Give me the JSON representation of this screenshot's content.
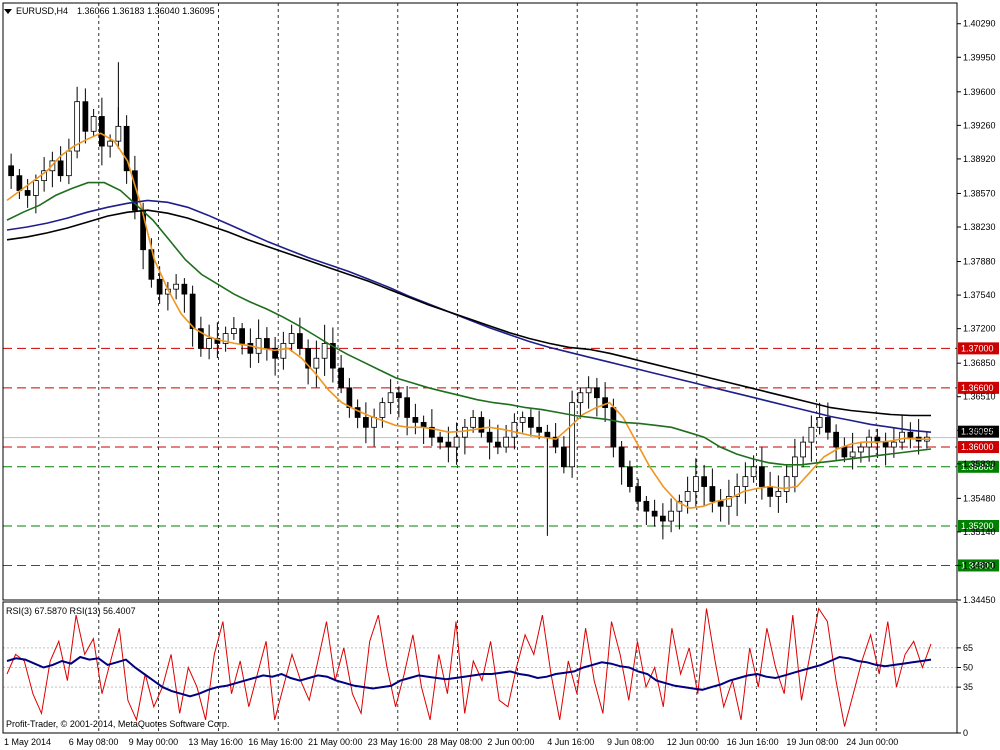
{
  "header": {
    "symbol": "EURUSD,H4",
    "ohlc": "1.36066 1.36183 1.36040 1.36095"
  },
  "footer": {
    "copyright": "Profit-Trader, © 2001-2014, MetaQuotes Software Corp."
  },
  "colors": {
    "candles": "#000000",
    "ema_fast": "#f0961e",
    "ema_mid": "#1e6e1e",
    "ema_slow_blue": "#1e1e8c",
    "ema_slowest": "#000000",
    "resistance": "#cc0000",
    "support": "#008000",
    "rsi3": "#dd0000",
    "rsi13": "#000080"
  },
  "chart_data": [
    {
      "type": "candlestick",
      "title": "EURUSD,H4",
      "ylim": [
        1.3445,
        1.405
      ],
      "y_ticks": [
        "1.40290",
        "1.39950",
        "1.39600",
        "1.39260",
        "1.38920",
        "1.38570",
        "1.38230",
        "1.37880",
        "1.37540",
        "1.37200",
        "1.36850",
        "1.36510",
        "1.36170",
        "1.35830",
        "1.35480",
        "1.35140",
        "1.34800",
        "1.34450"
      ],
      "x_ticks": [
        "1 May 2014",
        "6 May 08:00",
        "9 May 00:00",
        "13 May 16:00",
        "16 May 16:00",
        "21 May 00:00",
        "23 May 16:00",
        "28 May 08:00",
        "2 Jun 00:00",
        "4 Jun 16:00",
        "9 Jun 08:00",
        "12 Jun 00:00",
        "16 Jun 16:00",
        "19 Jun 08:00",
        "24 Jun 00:00"
      ],
      "close_path": [
        1.3875,
        1.386,
        1.3855,
        1.387,
        1.388,
        1.389,
        1.3875,
        1.39,
        1.395,
        1.392,
        1.3935,
        1.3905,
        1.391,
        1.3925,
        1.388,
        1.384,
        1.38,
        1.377,
        1.3755,
        1.376,
        1.3765,
        1.3755,
        1.372,
        1.37,
        1.371,
        1.3705,
        1.3715,
        1.372,
        1.3705,
        1.3695,
        1.371,
        1.37,
        1.369,
        1.3705,
        1.3715,
        1.37,
        1.368,
        1.369,
        1.3705,
        1.368,
        1.366,
        1.364,
        1.363,
        1.362,
        1.363,
        1.3645,
        1.3655,
        1.365,
        1.363,
        1.3625,
        1.362,
        1.361,
        1.3605,
        1.36,
        1.361,
        1.362,
        1.363,
        1.3615,
        1.3605,
        1.36,
        1.361,
        1.3625,
        1.363,
        1.362,
        1.3615,
        1.361,
        1.36,
        1.358,
        1.3645,
        1.3655,
        1.366,
        1.365,
        1.364,
        1.36,
        1.358,
        1.356,
        1.3545,
        1.3535,
        1.353,
        1.3525,
        1.3535,
        1.3545,
        1.3555,
        1.357,
        1.356,
        1.3545,
        1.354,
        1.355,
        1.356,
        1.357,
        1.358,
        1.356,
        1.355,
        1.3555,
        1.357,
        1.359,
        1.3605,
        1.362,
        1.363,
        1.3615,
        1.36,
        1.359,
        1.3595,
        1.36,
        1.361,
        1.3605,
        1.36,
        1.3605,
        1.3615,
        1.361,
        1.3606,
        1.361
      ],
      "horizontal_levels": [
        {
          "value": 1.37,
          "label": "1.37000",
          "kind": "resistance"
        },
        {
          "value": 1.366,
          "label": "1.36600",
          "kind": "resistance"
        },
        {
          "value": 1.36,
          "label": "1.36000",
          "kind": "resistance"
        },
        {
          "value": 1.358,
          "label": "1.35800",
          "kind": "support"
        },
        {
          "value": 1.352,
          "label": "1.35200",
          "kind": "support"
        },
        {
          "value": 1.348,
          "label": "1.34800",
          "kind": "support"
        }
      ],
      "current_price": {
        "value": 1.36095,
        "label": "1.36095"
      },
      "moving_averages": [
        {
          "color_key": "ema_fast",
          "values": [
            1.385,
            1.386,
            1.387,
            1.388,
            1.3895,
            1.3905,
            1.3912,
            1.3918,
            1.391,
            1.389,
            1.3845,
            1.379,
            1.376,
            1.3735,
            1.372,
            1.3712,
            1.3708,
            1.3705,
            1.3703,
            1.37,
            1.3698,
            1.37,
            1.369,
            1.3675,
            1.3658,
            1.3645,
            1.3638,
            1.3632,
            1.3627,
            1.3622,
            1.362,
            1.362,
            1.3618,
            1.3615,
            1.3616,
            1.3618,
            1.362,
            1.3618,
            1.3615,
            1.3612,
            1.361,
            1.3608,
            1.362,
            1.3633,
            1.364,
            1.3645,
            1.363,
            1.3605,
            1.358,
            1.356,
            1.3545,
            1.3538,
            1.354,
            1.3545,
            1.3548,
            1.3555,
            1.3558,
            1.356,
            1.3558,
            1.356,
            1.3575,
            1.359,
            1.3598,
            1.3603,
            1.3605,
            1.3605,
            1.3606,
            1.3609,
            1.3608,
            1.3608
          ]
        },
        {
          "color_key": "ema_mid",
          "values": [
            1.383,
            1.3838,
            1.3845,
            1.3855,
            1.3862,
            1.3868,
            1.3868,
            1.386,
            1.3845,
            1.383,
            1.381,
            1.379,
            1.3775,
            1.3765,
            1.3755,
            1.3747,
            1.374,
            1.3732,
            1.3723,
            1.3713,
            1.3703,
            1.3694,
            1.3686,
            1.3678,
            1.367,
            1.3665,
            1.366,
            1.3656,
            1.3652,
            1.3648,
            1.3645,
            1.3643,
            1.364,
            1.3638,
            1.3635,
            1.3632,
            1.363,
            1.3628,
            1.3625,
            1.3624,
            1.3622,
            1.362,
            1.3615,
            1.361,
            1.36,
            1.3593,
            1.3588,
            1.3584,
            1.3582,
            1.3582,
            1.3584,
            1.3586,
            1.3588,
            1.359,
            1.3592,
            1.3594,
            1.3596,
            1.3598
          ]
        },
        {
          "color_key": "ema_slow_blue",
          "values": [
            1.382,
            1.3823,
            1.3827,
            1.3832,
            1.3838,
            1.3843,
            1.3847,
            1.385,
            1.3848,
            1.3843,
            1.3835,
            1.3826,
            1.3817,
            1.3808,
            1.38,
            1.3792,
            1.3785,
            1.3778,
            1.377,
            1.3762,
            1.3753,
            1.3745,
            1.3737,
            1.3729,
            1.3721,
            1.3714,
            1.3707,
            1.3701,
            1.3696,
            1.3691,
            1.3686,
            1.3681,
            1.3676,
            1.3671,
            1.3666,
            1.3661,
            1.3656,
            1.3651,
            1.3646,
            1.3641,
            1.3636,
            1.3631,
            1.3627,
            1.3623,
            1.362,
            1.3617,
            1.3615
          ]
        },
        {
          "color_key": "ema_slowest",
          "values": [
            1.381,
            1.3813,
            1.3817,
            1.3822,
            1.3828,
            1.3834,
            1.3838,
            1.384,
            1.3837,
            1.3832,
            1.3825,
            1.3818,
            1.381,
            1.3803,
            1.3796,
            1.3789,
            1.3782,
            1.3775,
            1.3768,
            1.376,
            1.3752,
            1.3744,
            1.3737,
            1.373,
            1.3723,
            1.3716,
            1.371,
            1.3705,
            1.3701,
            1.3699,
            1.3695,
            1.369,
            1.3685,
            1.368,
            1.3675,
            1.367,
            1.3665,
            1.366,
            1.3655,
            1.365,
            1.3645,
            1.364,
            1.3637,
            1.3635,
            1.3633,
            1.3632,
            1.3632
          ]
        }
      ]
    },
    {
      "type": "line",
      "title": "RSI(3) 67.5870 RSI(13) 56.4007",
      "ylim": [
        0,
        100
      ],
      "y_ticks": [
        "100",
        "65",
        "50",
        "35",
        "0"
      ],
      "reference_levels": [
        65,
        50,
        35
      ],
      "series": [
        {
          "name": "RSI(3)",
          "color_key": "rsi3",
          "values": [
            45,
            60,
            55,
            30,
            15,
            55,
            70,
            40,
            90,
            60,
            72,
            30,
            55,
            80,
            25,
            10,
            45,
            20,
            35,
            60,
            15,
            50,
            35,
            10,
            60,
            85,
            30,
            55,
            20,
            45,
            70,
            10,
            35,
            60,
            40,
            25,
            55,
            85,
            40,
            65,
            30,
            15,
            70,
            90,
            50,
            20,
            45,
            75,
            35,
            10,
            60,
            30,
            85,
            15,
            55,
            40,
            70,
            25,
            20,
            50,
            75,
            60,
            90,
            45,
            10,
            55,
            30,
            80,
            40,
            15,
            85,
            60,
            25,
            70,
            35,
            50,
            20,
            80,
            45,
            65,
            30,
            95,
            55,
            20,
            40,
            10,
            65,
            35,
            80,
            50,
            30,
            90,
            25,
            60,
            95,
            85,
            40,
            5,
            30,
            55,
            75,
            45,
            85,
            35,
            60,
            70,
            50,
            68
          ]
        },
        {
          "name": "RSI(13)",
          "color_key": "rsi13",
          "values": [
            55,
            57,
            56,
            53,
            50,
            52,
            55,
            53,
            58,
            56,
            57,
            52,
            54,
            56,
            50,
            45,
            40,
            35,
            32,
            30,
            28,
            30,
            33,
            35,
            36,
            38,
            40,
            42,
            44,
            43,
            45,
            42,
            40,
            42,
            44,
            43,
            40,
            38,
            36,
            35,
            34,
            35,
            36,
            40,
            42,
            44,
            43,
            42,
            41,
            42,
            43,
            44,
            45,
            45,
            46,
            47,
            45,
            44,
            42,
            43,
            45,
            46,
            47,
            50,
            52,
            54,
            53,
            51,
            50,
            47,
            45,
            40,
            38,
            36,
            35,
            34,
            33,
            35,
            37,
            40,
            42,
            44,
            45,
            43,
            42,
            44,
            46,
            48,
            50,
            52,
            55,
            58,
            57,
            55,
            54,
            52,
            51,
            52,
            53,
            54,
            55,
            56
          ]
        }
      ]
    }
  ]
}
